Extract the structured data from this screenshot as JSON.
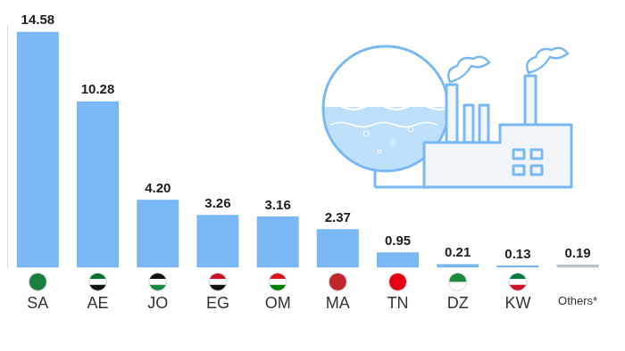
{
  "chart_data": {
    "type": "bar",
    "categories": [
      "SA",
      "AE",
      "JO",
      "EG",
      "OM",
      "MA",
      "TN",
      "DZ",
      "KW",
      "Others*"
    ],
    "values": [
      14.58,
      10.28,
      4.2,
      3.26,
      3.16,
      2.37,
      0.95,
      0.21,
      0.13,
      0.19
    ],
    "value_labels": [
      "14.58",
      "10.28",
      "4.20",
      "3.26",
      "3.16",
      "2.37",
      "0.95",
      "0.21",
      "0.13",
      "0.19"
    ],
    "colors": [
      "#7ab8f5",
      "#7ab8f5",
      "#7ab8f5",
      "#7ab8f5",
      "#7ab8f5",
      "#7ab8f5",
      "#7ab8f5",
      "#7ab8f5",
      "#7ab8f5",
      "#b8c4cc"
    ],
    "ylim": [
      0,
      15
    ],
    "grid": false,
    "data_labels": true,
    "tick_labels": "x"
  }
}
